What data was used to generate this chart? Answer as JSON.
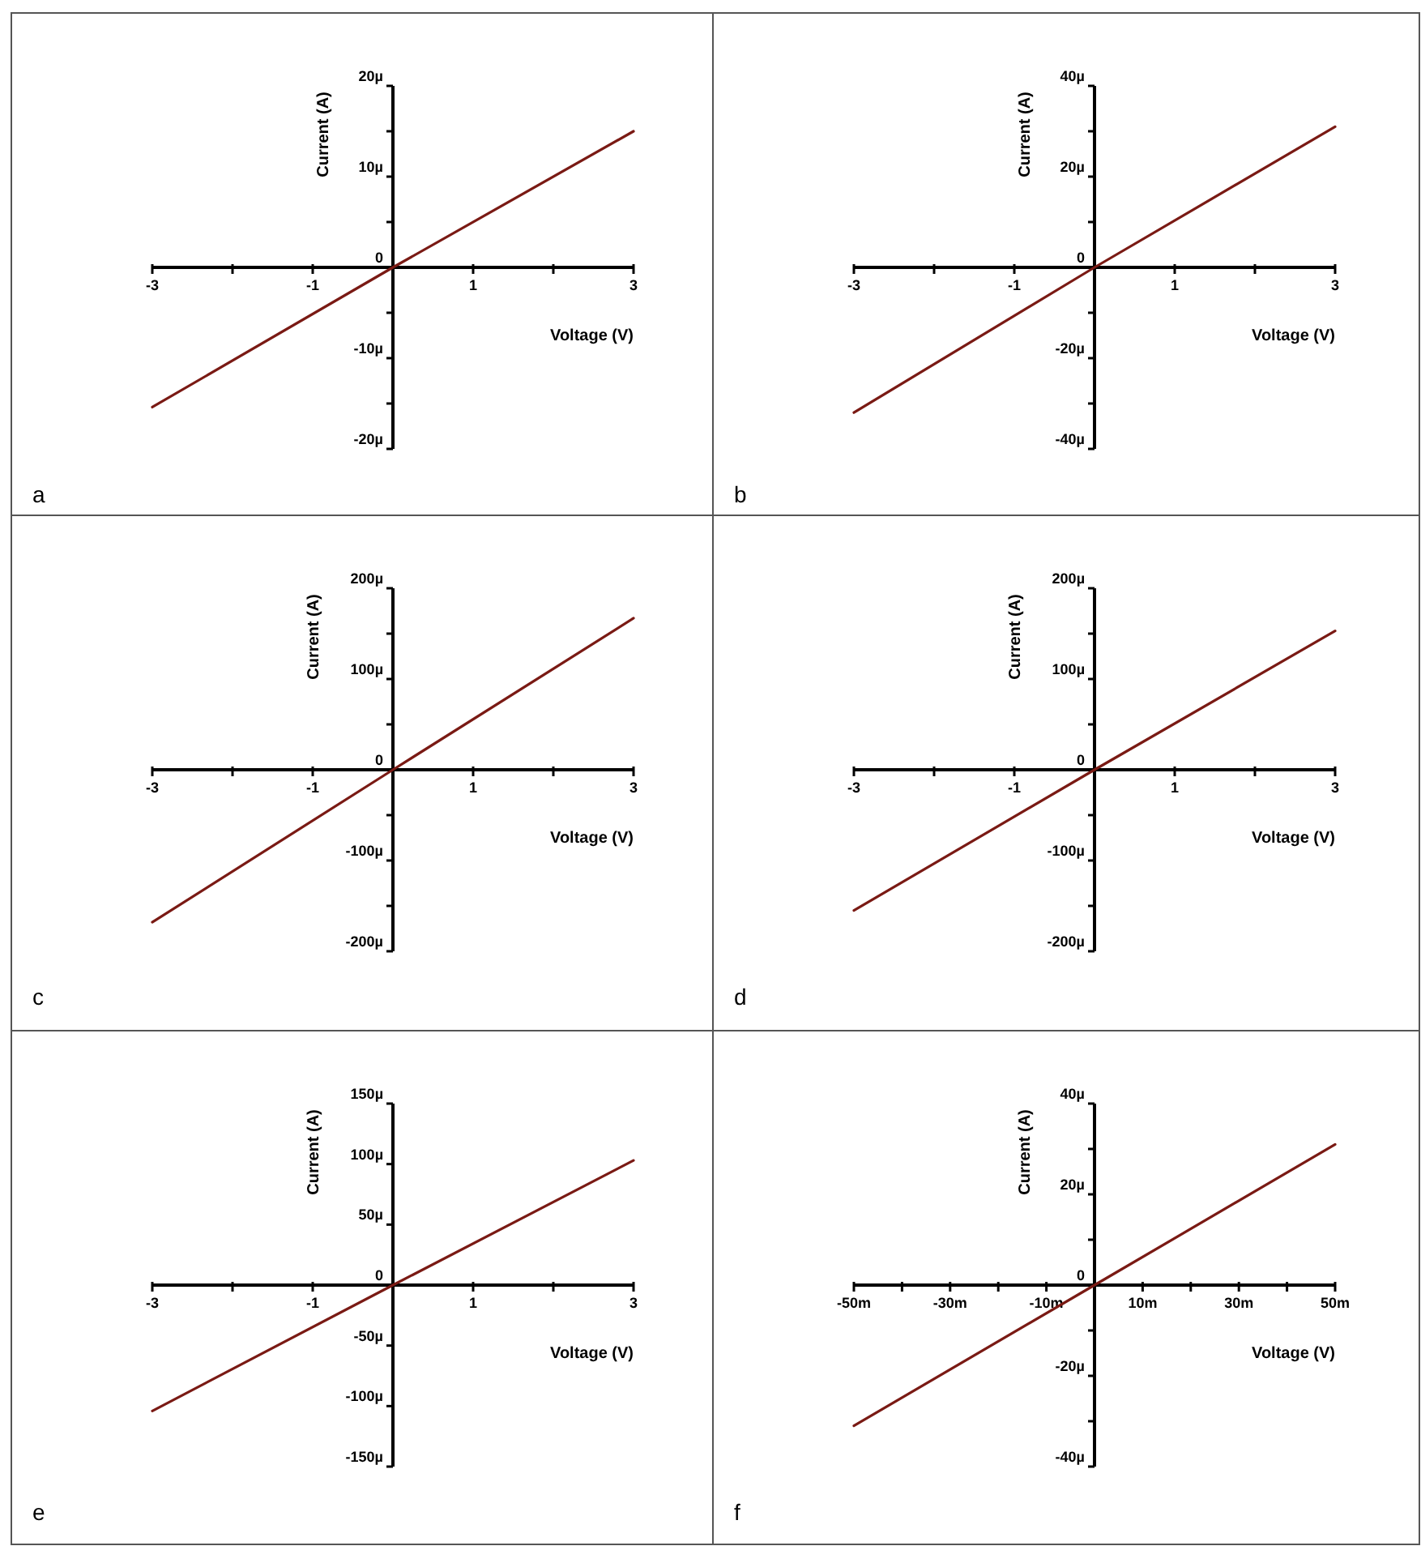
{
  "chart_data": [
    {
      "type": "line",
      "xlabel": "Voltage (V)",
      "ylabel": "Current (A)",
      "annotations": [
        "a"
      ],
      "x": [
        -3,
        0,
        3
      ],
      "series": [
        {
          "color": "#7a1a14",
          "values": [
            -15.4,
            0,
            15
          ]
        }
      ],
      "xlim": [
        -3,
        3
      ],
      "xticks": [
        -3,
        {
          "value": -2,
          "label": null
        },
        -1,
        {
          "value": 0,
          "label": null
        },
        1,
        {
          "value": 2,
          "label": null
        },
        3
      ],
      "ylim": [
        -20,
        20
      ],
      "yticks": [
        {
          "value": -20,
          "label": "-20µ"
        },
        {
          "value": -15,
          "label": null
        },
        {
          "value": -10,
          "label": "-10µ"
        },
        {
          "value": -5,
          "label": null
        },
        {
          "value": 0,
          "label": "0"
        },
        {
          "value": 5,
          "label": null
        },
        {
          "value": 10,
          "label": "10µ"
        },
        {
          "value": 15,
          "label": null
        },
        {
          "value": 20,
          "label": "20µ"
        }
      ]
    },
    {
      "type": "line",
      "xlabel": "Voltage (V)",
      "ylabel": "Current (A)",
      "annotations": [
        "b"
      ],
      "x": [
        -3,
        0,
        3
      ],
      "series": [
        {
          "color": "#7a1a14",
          "values": [
            -32,
            0,
            31
          ]
        }
      ],
      "xlim": [
        -3,
        3
      ],
      "xticks": [
        -3,
        {
          "value": -2,
          "label": null
        },
        -1,
        {
          "value": 0,
          "label": null
        },
        1,
        {
          "value": 2,
          "label": null
        },
        3
      ],
      "ylim": [
        -40,
        40
      ],
      "yticks": [
        {
          "value": -40,
          "label": "-40µ"
        },
        {
          "value": -30,
          "label": null
        },
        {
          "value": -20,
          "label": "-20µ"
        },
        {
          "value": -10,
          "label": null
        },
        {
          "value": 0,
          "label": "0"
        },
        {
          "value": 10,
          "label": null
        },
        {
          "value": 20,
          "label": "20µ"
        },
        {
          "value": 30,
          "label": null
        },
        {
          "value": 40,
          "label": "40µ"
        }
      ]
    },
    {
      "type": "line",
      "xlabel": "Voltage (V)",
      "ylabel": "Current (A)",
      "annotations": [
        "c"
      ],
      "x": [
        -3,
        0,
        3
      ],
      "series": [
        {
          "color": "#7a1a14",
          "values": [
            -168,
            0,
            167
          ]
        }
      ],
      "xlim": [
        -3,
        3
      ],
      "xticks": [
        -3,
        {
          "value": -2,
          "label": null
        },
        -1,
        {
          "value": 0,
          "label": null
        },
        1,
        {
          "value": 2,
          "label": null
        },
        3
      ],
      "ylim": [
        -200,
        200
      ],
      "yticks": [
        {
          "value": -200,
          "label": "-200µ"
        },
        {
          "value": -150,
          "label": null
        },
        {
          "value": -100,
          "label": "-100µ"
        },
        {
          "value": -50,
          "label": null
        },
        {
          "value": 0,
          "label": "0"
        },
        {
          "value": 50,
          "label": null
        },
        {
          "value": 100,
          "label": "100µ"
        },
        {
          "value": 150,
          "label": null
        },
        {
          "value": 200,
          "label": "200µ"
        }
      ]
    },
    {
      "type": "line",
      "xlabel": "Voltage (V)",
      "ylabel": "Current (A)",
      "annotations": [
        "d"
      ],
      "x": [
        -3,
        0,
        3
      ],
      "series": [
        {
          "color": "#7a1a14",
          "values": [
            -155,
            0,
            153
          ]
        }
      ],
      "xlim": [
        -3,
        3
      ],
      "xticks": [
        -3,
        {
          "value": -2,
          "label": null
        },
        -1,
        {
          "value": 0,
          "label": null
        },
        1,
        {
          "value": 2,
          "label": null
        },
        3
      ],
      "ylim": [
        -200,
        200
      ],
      "yticks": [
        {
          "value": -200,
          "label": "-200µ"
        },
        {
          "value": -150,
          "label": null
        },
        {
          "value": -100,
          "label": "-100µ"
        },
        {
          "value": -50,
          "label": null
        },
        {
          "value": 0,
          "label": "0"
        },
        {
          "value": 50,
          "label": null
        },
        {
          "value": 100,
          "label": "100µ"
        },
        {
          "value": 150,
          "label": null
        },
        {
          "value": 200,
          "label": "200µ"
        }
      ]
    },
    {
      "type": "line",
      "xlabel": "Voltage (V)",
      "ylabel": "Current (A)",
      "annotations": [
        "e"
      ],
      "x": [
        -3,
        0,
        3
      ],
      "series": [
        {
          "color": "#7a1a14",
          "values": [
            -104,
            0,
            103
          ]
        }
      ],
      "xlim": [
        -3,
        3
      ],
      "xticks": [
        -3,
        {
          "value": -2,
          "label": null
        },
        -1,
        {
          "value": 0,
          "label": null
        },
        1,
        {
          "value": 2,
          "label": null
        },
        3
      ],
      "ylim": [
        -150,
        150
      ],
      "yticks": [
        {
          "value": -150,
          "label": "-150µ"
        },
        {
          "value": -100,
          "label": "-100µ"
        },
        {
          "value": -50,
          "label": "-50µ"
        },
        {
          "value": 0,
          "label": "0"
        },
        {
          "value": 50,
          "label": "50µ"
        },
        {
          "value": 100,
          "label": "100µ"
        },
        {
          "value": 150,
          "label": "150µ"
        }
      ]
    },
    {
      "type": "line",
      "xlabel": "Voltage (V)",
      "ylabel": "Current (A)",
      "annotations": [
        "f"
      ],
      "x": [
        -50,
        0,
        50
      ],
      "series": [
        {
          "color": "#7a1a14",
          "values": [
            -31,
            0,
            31
          ]
        }
      ],
      "xlim": [
        -50,
        50
      ],
      "xticks": [
        {
          "value": -50,
          "label": "-50m"
        },
        {
          "value": -40,
          "label": null
        },
        {
          "value": -30,
          "label": "-30m"
        },
        {
          "value": -20,
          "label": null
        },
        {
          "value": -10,
          "label": "-10m"
        },
        {
          "value": 0,
          "label": null
        },
        {
          "value": 10,
          "label": "10m"
        },
        {
          "value": 20,
          "label": null
        },
        {
          "value": 30,
          "label": "30m"
        },
        {
          "value": 40,
          "label": null
        },
        {
          "value": 50,
          "label": "50m"
        }
      ],
      "ylim": [
        -40,
        40
      ],
      "yticks": [
        {
          "value": -40,
          "label": "-40µ"
        },
        {
          "value": -30,
          "label": null
        },
        {
          "value": -20,
          "label": "-20µ"
        },
        {
          "value": -10,
          "label": null
        },
        {
          "value": 0,
          "label": "0"
        },
        {
          "value": 10,
          "label": null
        },
        {
          "value": 20,
          "label": "20µ"
        },
        {
          "value": 30,
          "label": null
        },
        {
          "value": 40,
          "label": "40µ"
        }
      ]
    }
  ]
}
